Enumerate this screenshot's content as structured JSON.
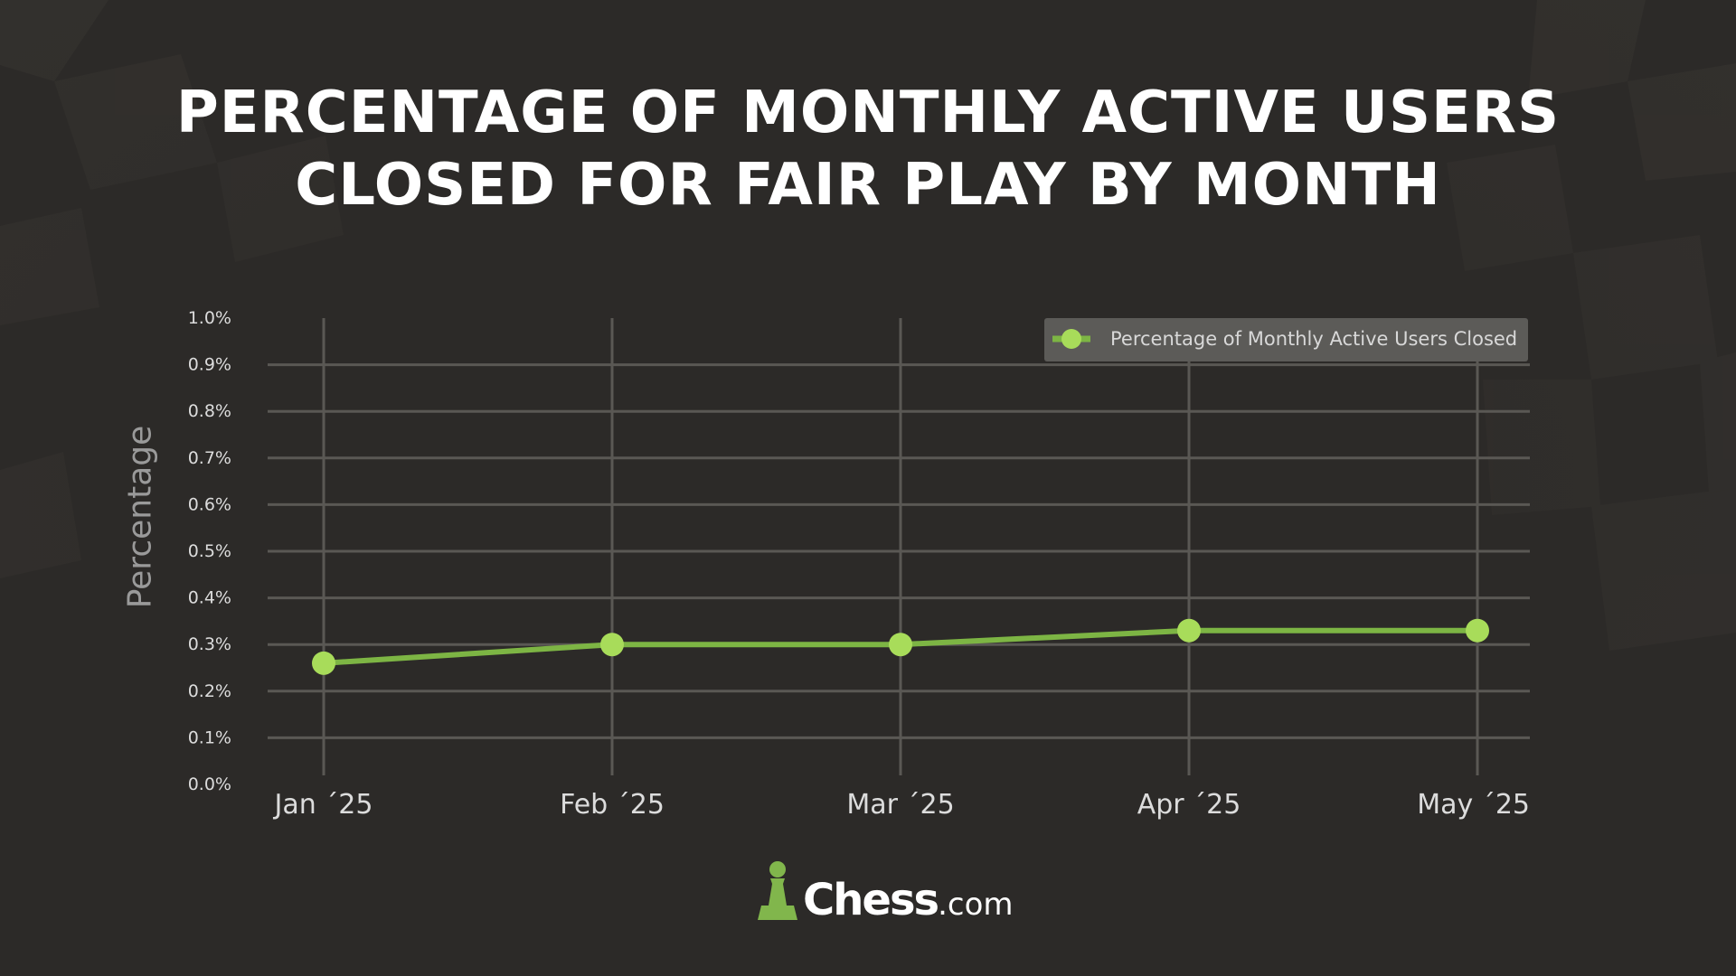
{
  "title_lines": [
    "PERCENTAGE OF MONTHLY ACTIVE USERS",
    "CLOSED FOR FAIR PLAY BY MONTH"
  ],
  "brand": {
    "name": "Chess",
    "domain": ".com"
  },
  "chart_data": {
    "type": "line",
    "categories": [
      "Jan ´25",
      "Feb ´25",
      "Mar ´25",
      "Apr ´25",
      "May ´25"
    ],
    "series": [
      {
        "name": "Percentage of Monthly Active Users Closed",
        "values": [
          0.26,
          0.3,
          0.3,
          0.33,
          0.33
        ],
        "color": "#a8dc5a",
        "line_color": "#7db544"
      }
    ],
    "ylabel": "Percentage",
    "ylim": [
      0,
      1.0
    ],
    "yticks": [
      {
        "value": 0.0,
        "label": "0.0%"
      },
      {
        "value": 0.1,
        "label": "0.1%"
      },
      {
        "value": 0.2,
        "label": "0.2%"
      },
      {
        "value": 0.3,
        "label": "0.3%"
      },
      {
        "value": 0.4,
        "label": "0.4%"
      },
      {
        "value": 0.5,
        "label": "0.5%"
      },
      {
        "value": 0.6,
        "label": "0.6%"
      },
      {
        "value": 0.7,
        "label": "0.7%"
      },
      {
        "value": 0.8,
        "label": "0.8%"
      },
      {
        "value": 0.9,
        "label": "0.9%"
      },
      {
        "value": 1.0,
        "label": "1.0%"
      }
    ],
    "grid": true,
    "legend_position": "top-right",
    "colors": {
      "background": "#2c2a28",
      "grid": "#5a5854",
      "tick_text": "#dcdcdc",
      "legend_bg": "#5c5b58"
    }
  }
}
